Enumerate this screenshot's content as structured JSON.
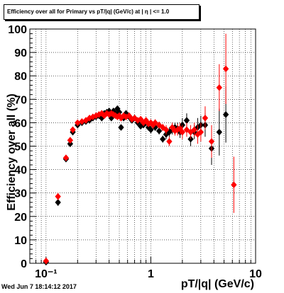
{
  "header": {
    "title": "Efficiency over all for Primary vs pT/|q| (GeV/c) at | η | <= 1.0"
  },
  "footer": {
    "date": "Wed Jun  7 18:14:12 2017"
  },
  "colors": {
    "series_a": "#000000",
    "series_b": "#ff0000",
    "grid": "#000000"
  },
  "chart_data": {
    "type": "scatter",
    "title": "Efficiency over all for Primary vs pT/|q| (GeV/c) at | η | <= 1.0",
    "xlabel": "pT/|q| (GeV/c)",
    "ylabel": "Efficiency over all (%)",
    "xscale": "log",
    "xlim": [
      0.07,
      10
    ],
    "ylim": [
      0,
      100
    ],
    "grid": true,
    "x_ticks": [
      {
        "v": 0.1,
        "t": "10⁻¹"
      },
      {
        "v": 1,
        "t": "1"
      },
      {
        "v": 10,
        "t": "10"
      }
    ],
    "y_ticks": [
      "0",
      "10",
      "20",
      "30",
      "40",
      "50",
      "60",
      "70",
      "80",
      "90",
      "100"
    ],
    "series": [
      {
        "color": "#000000",
        "marker": "diamond",
        "points": [
          [
            0.1,
            0.5,
            0.5
          ],
          [
            0.13,
            26,
            1.5
          ],
          [
            0.155,
            44.5,
            1.2
          ],
          [
            0.17,
            51,
            1
          ],
          [
            0.18,
            56,
            1
          ],
          [
            0.2,
            59,
            1
          ],
          [
            0.22,
            60,
            1
          ],
          [
            0.24,
            60.5,
            1
          ],
          [
            0.26,
            61,
            1
          ],
          [
            0.28,
            62,
            1
          ],
          [
            0.3,
            62.5,
            1
          ],
          [
            0.32,
            63,
            1
          ],
          [
            0.34,
            62,
            1
          ],
          [
            0.36,
            64,
            1
          ],
          [
            0.38,
            64.5,
            1
          ],
          [
            0.4,
            65,
            1
          ],
          [
            0.42,
            62,
            1
          ],
          [
            0.44,
            65,
            1
          ],
          [
            0.46,
            64,
            1
          ],
          [
            0.48,
            66,
            1
          ],
          [
            0.5,
            64.5,
            1
          ],
          [
            0.52,
            58,
            1
          ],
          [
            0.55,
            62,
            1
          ],
          [
            0.58,
            64,
            1
          ],
          [
            0.62,
            62.5,
            1
          ],
          [
            0.66,
            61,
            1
          ],
          [
            0.7,
            62,
            1
          ],
          [
            0.75,
            60,
            1
          ],
          [
            0.8,
            58.5,
            1
          ],
          [
            0.85,
            59,
            1
          ],
          [
            0.9,
            60,
            1
          ],
          [
            0.95,
            58,
            1
          ],
          [
            1.0,
            57,
            1.5
          ],
          [
            1.05,
            59,
            1.5
          ],
          [
            1.1,
            58,
            1.5
          ],
          [
            1.2,
            56.5,
            1.5
          ],
          [
            1.3,
            53,
            1.5
          ],
          [
            1.4,
            55,
            2
          ],
          [
            1.5,
            56,
            2
          ],
          [
            1.6,
            57,
            2
          ],
          [
            1.7,
            58,
            2
          ],
          [
            1.8,
            57.5,
            2.5
          ],
          [
            1.9,
            56,
            2.5
          ],
          [
            2.0,
            59,
            3
          ],
          [
            2.2,
            61,
            3
          ],
          [
            2.4,
            53,
            3
          ],
          [
            2.6,
            56,
            3
          ],
          [
            2.8,
            58,
            4
          ],
          [
            3.0,
            59,
            4
          ],
          [
            3.3,
            59,
            5
          ],
          [
            3.8,
            49,
            7
          ],
          [
            4.5,
            56,
            10
          ],
          [
            5.2,
            63.5,
            12
          ]
        ]
      },
      {
        "color": "#ff0000",
        "marker": "diamond",
        "points": [
          [
            0.1,
            1,
            0.5
          ],
          [
            0.13,
            28.5,
            1.5
          ],
          [
            0.155,
            45,
            1.2
          ],
          [
            0.17,
            52.5,
            1
          ],
          [
            0.18,
            57,
            1
          ],
          [
            0.2,
            60,
            1
          ],
          [
            0.22,
            60.5,
            1
          ],
          [
            0.24,
            61,
            1
          ],
          [
            0.26,
            62,
            1
          ],
          [
            0.28,
            62.5,
            1
          ],
          [
            0.3,
            63,
            1
          ],
          [
            0.32,
            63.5,
            1
          ],
          [
            0.34,
            64,
            1
          ],
          [
            0.36,
            63,
            1
          ],
          [
            0.38,
            64,
            1
          ],
          [
            0.4,
            63.5,
            1
          ],
          [
            0.42,
            64,
            1
          ],
          [
            0.44,
            63.5,
            1
          ],
          [
            0.46,
            63,
            1
          ],
          [
            0.48,
            62.5,
            1
          ],
          [
            0.5,
            63,
            1
          ],
          [
            0.52,
            62,
            1
          ],
          [
            0.55,
            63,
            1
          ],
          [
            0.58,
            62.5,
            1
          ],
          [
            0.62,
            63,
            1
          ],
          [
            0.66,
            61.5,
            1
          ],
          [
            0.7,
            62,
            1
          ],
          [
            0.75,
            61,
            1
          ],
          [
            0.8,
            61.5,
            1
          ],
          [
            0.85,
            60,
            1
          ],
          [
            0.9,
            61,
            1
          ],
          [
            0.95,
            59.5,
            1
          ],
          [
            1.0,
            60,
            1.5
          ],
          [
            1.05,
            59,
            1.5
          ],
          [
            1.1,
            60,
            1.5
          ],
          [
            1.2,
            59,
            1.5
          ],
          [
            1.3,
            58,
            1.5
          ],
          [
            1.4,
            57,
            2
          ],
          [
            1.5,
            52,
            2
          ],
          [
            1.6,
            58,
            2
          ],
          [
            1.7,
            56.5,
            2
          ],
          [
            1.8,
            57,
            2.5
          ],
          [
            1.9,
            57.5,
            2.5
          ],
          [
            2.0,
            56,
            3
          ],
          [
            2.2,
            57,
            3
          ],
          [
            2.4,
            56,
            3
          ],
          [
            2.6,
            57,
            3
          ],
          [
            2.8,
            55,
            4
          ],
          [
            3.0,
            56,
            4
          ],
          [
            3.3,
            62,
            5
          ],
          [
            3.8,
            52,
            7
          ],
          [
            4.5,
            75,
            10
          ],
          [
            5.2,
            83,
            15
          ],
          [
            6.2,
            33.5,
            12
          ]
        ]
      }
    ]
  }
}
